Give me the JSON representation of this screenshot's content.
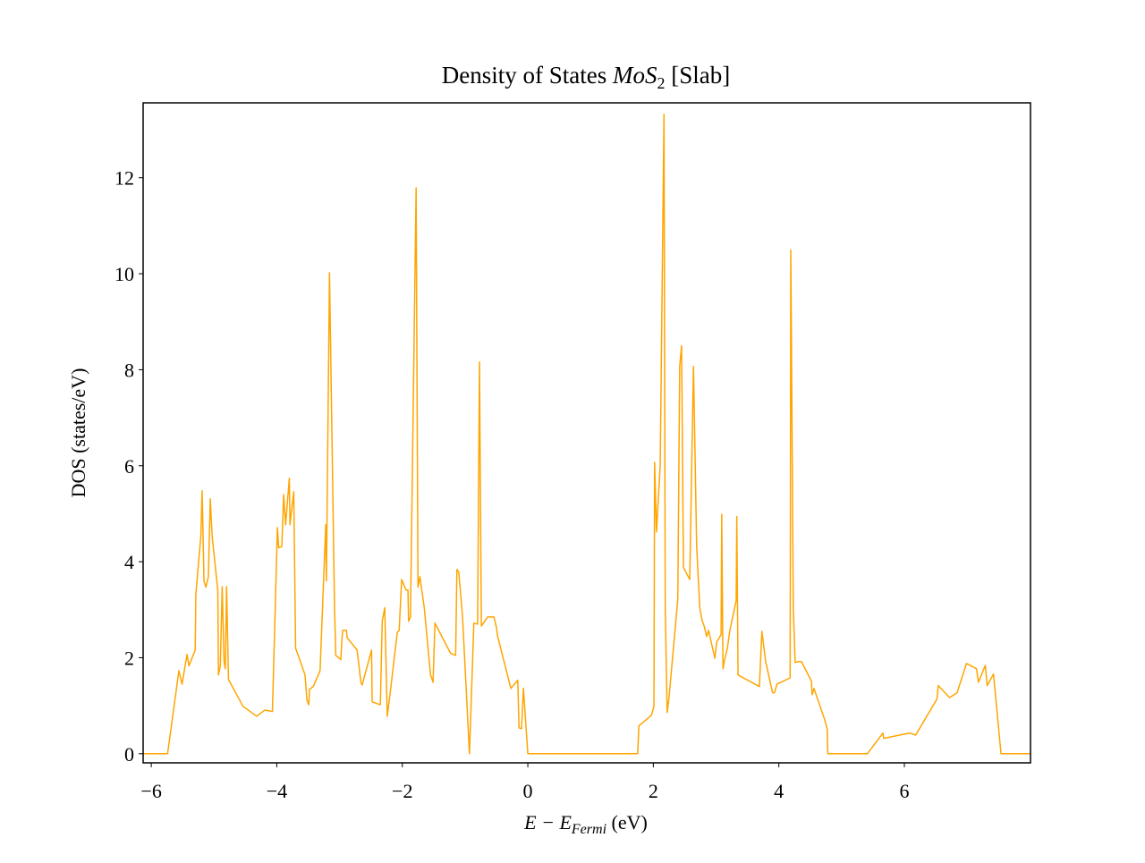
{
  "chart_data": {
    "type": "line",
    "title": [
      "Density of States ",
      "MoS",
      "2",
      " [Slab]"
    ],
    "x_label": [
      "E − E",
      "Fermi",
      " (eV)"
    ],
    "y_label": "DOS (states/eV)",
    "xlim": [
      -6.13,
      8.01
    ],
    "ylim": [
      -0.19,
      13.56
    ],
    "xticks": [
      {
        "value": -6,
        "label": "−6"
      },
      {
        "value": -4,
        "label": "−4"
      },
      {
        "value": -2,
        "label": "−2"
      },
      0,
      2,
      4,
      6
    ],
    "yticks": [
      0,
      2,
      4,
      6,
      8,
      10,
      12
    ],
    "x": [
      -6.13,
      -5.74,
      -5.56,
      -5.51,
      -5.43,
      -5.4,
      -5.3,
      -5.29,
      -5.21,
      -5.19,
      -5.16,
      -5.13,
      -5.09,
      -5.06,
      -5.03,
      -4.94,
      -4.93,
      -4.9,
      -4.87,
      -4.84,
      -4.82,
      -4.8,
      -4.77,
      -4.54,
      -4.32,
      -4.19,
      -4.07,
      -3.99,
      -3.97,
      -3.92,
      -3.89,
      -3.86,
      -3.8,
      -3.79,
      -3.73,
      -3.7,
      -3.55,
      -3.52,
      -3.49,
      -3.48,
      -3.42,
      -3.31,
      -3.22,
      -3.21,
      -3.16,
      -3.08,
      -3.06,
      -2.98,
      -2.96,
      -2.95,
      -2.89,
      -2.88,
      -2.72,
      -2.66,
      -2.64,
      -2.49,
      -2.48,
      -2.35,
      -2.32,
      -2.28,
      -2.24,
      -2.19,
      -2.08,
      -2.05,
      -2.01,
      -1.94,
      -1.91,
      -1.9,
      -1.87,
      -1.78,
      -1.75,
      -1.72,
      -1.65,
      -1.55,
      -1.51,
      -1.48,
      -1.23,
      -1.15,
      -1.13,
      -1.1,
      -1.04,
      -0.93,
      -0.86,
      -0.8,
      -0.77,
      -0.74,
      -0.64,
      -0.54,
      -0.5,
      -0.48,
      -0.27,
      -0.16,
      -0.14,
      -0.1,
      -0.07,
      0,
      1.75,
      1.77,
      1.97,
      2.01,
      2.02,
      2.05,
      2.11,
      2.17,
      2.19,
      2.22,
      2.25,
      2.39,
      2.42,
      2.45,
      2.48,
      2.52,
      2.58,
      2.64,
      2.69,
      2.74,
      2.78,
      2.81,
      2.85,
      2.88,
      2.98,
      3.01,
      3.08,
      3.09,
      3.11,
      3.13,
      3.18,
      3.22,
      3.32,
      3.33,
      3.35,
      3.69,
      3.73,
      3.79,
      3.9,
      3.93,
      3.97,
      4.18,
      4.19,
      4.23,
      4.26,
      4.32,
      4.36,
      4.52,
      4.53,
      4.56,
      4.73,
      4.77,
      4.78,
      5.41,
      5.66,
      5.67,
      6.08,
      6.18,
      6.52,
      6.54,
      6.72,
      6.84,
      6.99,
      7.15,
      7.18,
      7.29,
      7.32,
      7.42,
      7.54,
      8.01
    ],
    "series": [
      {
        "color": "#ffa500",
        "values": [
          0,
          0,
          1.73,
          1.45,
          2.07,
          1.83,
          2.16,
          3.32,
          4.53,
          5.48,
          3.6,
          3.47,
          3.69,
          5.31,
          4.53,
          3.41,
          1.64,
          1.83,
          3.48,
          1.92,
          1.77,
          3.48,
          1.55,
          0.99,
          0.78,
          0.91,
          0.88,
          4.71,
          4.29,
          4.32,
          5.4,
          4.77,
          5.74,
          4.77,
          5.46,
          2.2,
          1.64,
          1.12,
          1.02,
          1.34,
          1.4,
          1.73,
          4.77,
          3.6,
          10.02,
          3.04,
          2.05,
          1.96,
          2.42,
          2.57,
          2.57,
          2.42,
          2.16,
          1.49,
          1.43,
          2.16,
          1.08,
          1.02,
          2.76,
          3.04,
          0.78,
          1.3,
          2.53,
          2.57,
          3.63,
          3.41,
          3.41,
          2.76,
          2.85,
          11.79,
          3.47,
          3.69,
          3.04,
          1.64,
          1.49,
          2.72,
          2.09,
          2.05,
          3.84,
          3.78,
          2.85,
          0,
          2.72,
          2.7,
          8.16,
          2.66,
          2.85,
          2.85,
          2.63,
          2.44,
          1.36,
          1.53,
          0.54,
          0.52,
          1.36,
          0,
          0,
          0.58,
          0.8,
          0.99,
          6.07,
          4.62,
          6.02,
          13.32,
          3.04,
          0.86,
          1.17,
          3.22,
          8.07,
          8.5,
          3.88,
          3.78,
          3.63,
          8.07,
          4.34,
          3.04,
          2.76,
          2.66,
          2.44,
          2.57,
          1.99,
          2.33,
          2.48,
          4.99,
          1.77,
          1.92,
          2.2,
          2.57,
          3.19,
          4.94,
          1.64,
          1.4,
          2.55,
          1.92,
          1.27,
          1.27,
          1.45,
          1.58,
          10.49,
          3.04,
          1.9,
          1.92,
          1.92,
          1.51,
          1.23,
          1.36,
          0.71,
          0.52,
          0,
          0,
          0.43,
          0.32,
          0.43,
          0.39,
          1.14,
          1.42,
          1.17,
          1.27,
          1.88,
          1.77,
          1.49,
          1.84,
          1.42,
          1.66,
          0,
          0
        ]
      }
    ]
  }
}
